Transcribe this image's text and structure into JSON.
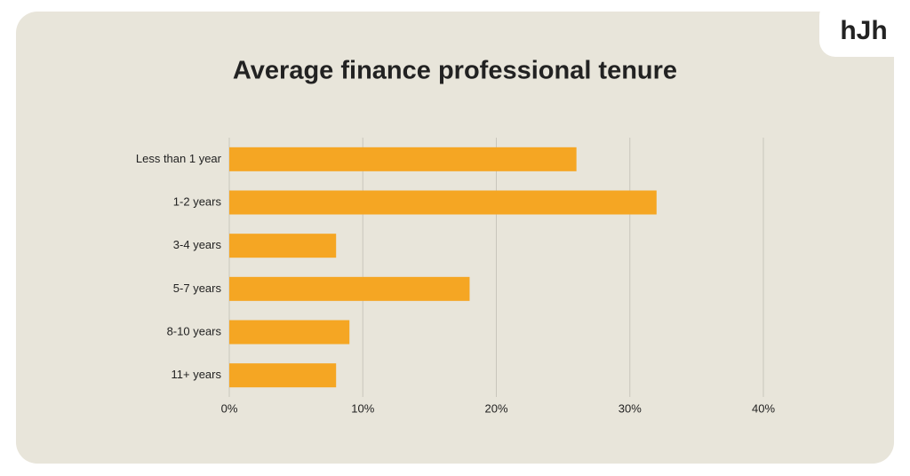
{
  "chart_data": {
    "type": "hbar",
    "title": "Average finance professional tenure",
    "logo": "hJh",
    "categories": [
      "Less than 1 year",
      "1-2 years",
      "3-4 years",
      "5-7 years",
      "8-10 years",
      "11+ years"
    ],
    "values": [
      26,
      32,
      8,
      18,
      9,
      8
    ],
    "color": "#f5a623",
    "xlim": [
      0,
      40
    ],
    "xticks": [
      {
        "value": 0,
        "label": "0%"
      },
      {
        "value": 10,
        "label": "10%"
      },
      {
        "value": 20,
        "label": "20%"
      },
      {
        "value": 30,
        "label": "30%"
      },
      {
        "value": 40,
        "label": "40%"
      }
    ],
    "grid": true
  }
}
